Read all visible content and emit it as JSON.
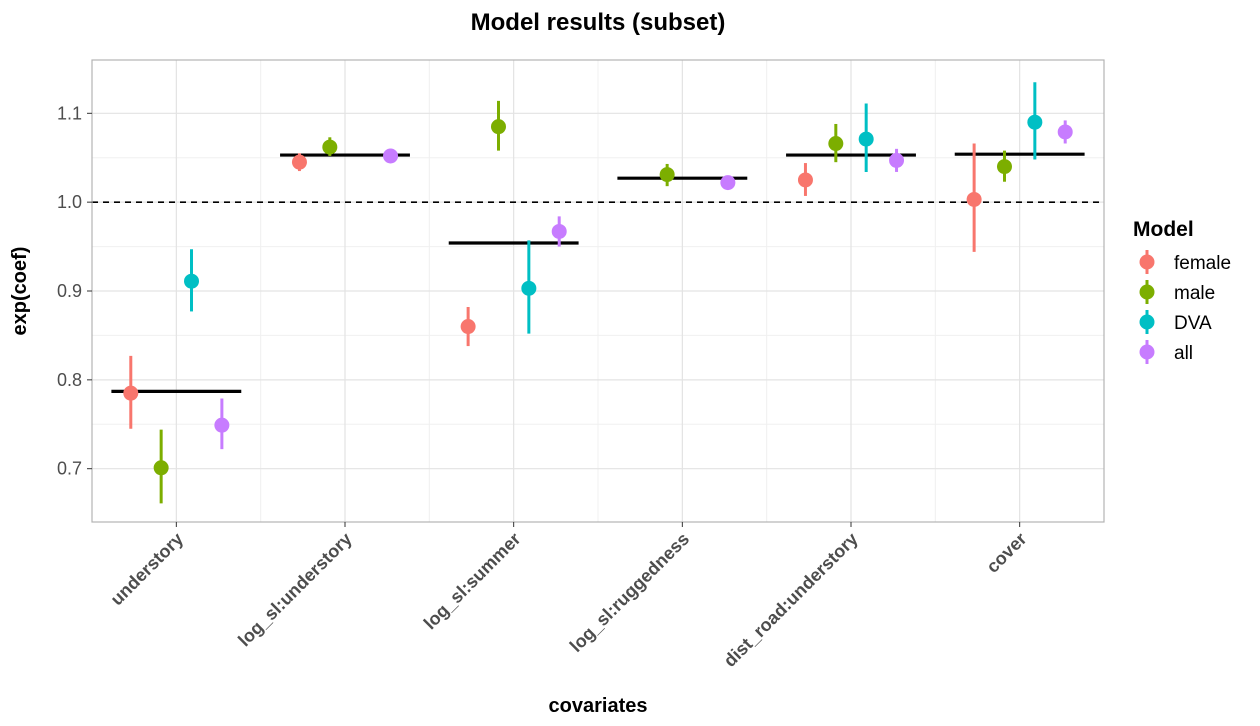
{
  "chart_data": {
    "type": "scatter",
    "title": "Model results (subset)",
    "xlabel": "covariates",
    "ylabel": "exp(coef)",
    "ylim": [
      0.64,
      1.16
    ],
    "yticks": [
      0.7,
      0.8,
      0.9,
      1.0,
      1.1
    ],
    "ytick_labels": [
      "0.7",
      "0.8",
      "0.9",
      "1.0",
      "1.1"
    ],
    "reference_line": 1.0,
    "grid": true,
    "legend_title": "Model",
    "legend_position": "right",
    "categories": [
      "understory",
      "log_sl:understory",
      "log_sl:summer",
      "log_sl:ruggedness",
      "dist_road:understory",
      "cover"
    ],
    "series": [
      {
        "name": "female",
        "color": "#F8766D",
        "values": [
          0.785,
          1.045,
          0.86,
          null,
          1.025,
          1.003
        ],
        "lower": [
          0.745,
          1.035,
          0.838,
          null,
          1.007,
          0.944
        ],
        "upper": [
          0.827,
          1.055,
          0.882,
          null,
          1.044,
          1.066
        ]
      },
      {
        "name": "male",
        "color": "#7CAE00",
        "values": [
          0.701,
          1.062,
          1.085,
          1.031,
          1.066,
          1.04
        ],
        "lower": [
          0.661,
          1.052,
          1.058,
          1.018,
          1.045,
          1.023
        ],
        "upper": [
          0.744,
          1.073,
          1.114,
          1.043,
          1.088,
          1.058
        ]
      },
      {
        "name": "DVA",
        "color": "#00BFC4",
        "values": [
          0.911,
          null,
          0.903,
          null,
          1.071,
          1.09
        ],
        "lower": [
          0.877,
          null,
          0.852,
          null,
          1.034,
          1.048
        ],
        "upper": [
          0.947,
          null,
          0.957,
          null,
          1.111,
          1.135
        ]
      },
      {
        "name": "all",
        "color": "#C77CFF",
        "values": [
          0.749,
          1.052,
          0.967,
          1.022,
          1.047,
          1.079
        ],
        "lower": [
          0.722,
          1.045,
          0.95,
          1.015,
          1.034,
          1.066
        ],
        "upper": [
          0.779,
          1.06,
          0.984,
          1.03,
          1.06,
          1.092
        ]
      }
    ],
    "mean_lines": [
      0.787,
      1.053,
      0.954,
      1.027,
      1.053,
      1.054
    ]
  }
}
